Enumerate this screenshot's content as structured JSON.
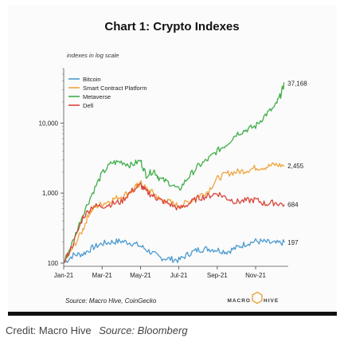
{
  "chart_data": {
    "type": "line",
    "title": "Chart 1: Crypto Indexes",
    "y_note": "indexes in log scale",
    "y_scale": "log",
    "ylim": [
      90,
      60000
    ],
    "xlim": [
      0,
      11.7
    ],
    "y_ticks": [
      {
        "value": 100,
        "label": "100"
      },
      {
        "value": 1000,
        "label": "1,000"
      },
      {
        "value": 10000,
        "label": "10,000"
      }
    ],
    "x_ticks": [
      {
        "value": 0,
        "label": "Jan-21"
      },
      {
        "value": 2,
        "label": "Mar-21"
      },
      {
        "value": 4,
        "label": "May-21"
      },
      {
        "value": 6,
        "label": "Jul-21"
      },
      {
        "value": 8,
        "label": "Sep-21"
      },
      {
        "value": 10,
        "label": "Nov-21"
      }
    ],
    "grid": false,
    "legend_position": "top-left",
    "series": [
      {
        "name": "Bitcoin",
        "color": "#4c9bd0",
        "end_label": "197",
        "points": [
          [
            0,
            100
          ],
          [
            0.5,
            130
          ],
          [
            1,
            135
          ],
          [
            1.5,
            165
          ],
          [
            2,
            190
          ],
          [
            2.5,
            200
          ],
          [
            3,
            205
          ],
          [
            3.5,
            195
          ],
          [
            4,
            175
          ],
          [
            4.5,
            145
          ],
          [
            5,
            120
          ],
          [
            5.5,
            115
          ],
          [
            6,
            110
          ],
          [
            6.5,
            135
          ],
          [
            7,
            155
          ],
          [
            7.5,
            160
          ],
          [
            8,
            155
          ],
          [
            8.5,
            145
          ],
          [
            9,
            165
          ],
          [
            9.5,
            190
          ],
          [
            10,
            205
          ],
          [
            10.5,
            200
          ],
          [
            11,
            190
          ],
          [
            11.5,
            197
          ]
        ]
      },
      {
        "name": "Smart Contract Platform",
        "color": "#f0a640",
        "end_label": "2,455",
        "points": [
          [
            0,
            100
          ],
          [
            0.5,
            170
          ],
          [
            1,
            300
          ],
          [
            1.3,
            500
          ],
          [
            1.6,
            630
          ],
          [
            2,
            700
          ],
          [
            2.5,
            800
          ],
          [
            3,
            900
          ],
          [
            3.5,
            1050
          ],
          [
            3.8,
            1250
          ],
          [
            4,
            1400
          ],
          [
            4.3,
            1150
          ],
          [
            4.7,
            1000
          ],
          [
            5,
            800
          ],
          [
            5.5,
            750
          ],
          [
            6,
            650
          ],
          [
            6.5,
            750
          ],
          [
            7,
            900
          ],
          [
            7.5,
            1050
          ],
          [
            8,
            1600
          ],
          [
            8.5,
            1900
          ],
          [
            9,
            2000
          ],
          [
            9.5,
            2100
          ],
          [
            10,
            2300
          ],
          [
            10.5,
            2350
          ],
          [
            11,
            2550
          ],
          [
            11.5,
            2455
          ]
        ]
      },
      {
        "name": "Metaverse",
        "color": "#3fae49",
        "end_label": "37,168",
        "points": [
          [
            0,
            100
          ],
          [
            0.5,
            210
          ],
          [
            1,
            500
          ],
          [
            1.5,
            1000
          ],
          [
            2,
            1900
          ],
          [
            2.5,
            2700
          ],
          [
            3,
            2800
          ],
          [
            3.5,
            2500
          ],
          [
            4,
            2900
          ],
          [
            4.3,
            1800
          ],
          [
            4.7,
            2100
          ],
          [
            5,
            1600
          ],
          [
            5.5,
            1400
          ],
          [
            6,
            1100
          ],
          [
            6.5,
            1700
          ],
          [
            7,
            2400
          ],
          [
            7.5,
            3000
          ],
          [
            8,
            4000
          ],
          [
            8.5,
            5000
          ],
          [
            9,
            7000
          ],
          [
            9.5,
            8000
          ],
          [
            10,
            9000
          ],
          [
            10.5,
            13000
          ],
          [
            11,
            17000
          ],
          [
            11.3,
            25000
          ],
          [
            11.5,
            37168
          ]
        ]
      },
      {
        "name": "Defi",
        "color": "#d9463a",
        "end_label": "684",
        "points": [
          [
            0,
            100
          ],
          [
            0.5,
            190
          ],
          [
            1,
            450
          ],
          [
            1.5,
            650
          ],
          [
            2,
            650
          ],
          [
            2.5,
            700
          ],
          [
            3,
            750
          ],
          [
            3.5,
            1050
          ],
          [
            4,
            1300
          ],
          [
            4.3,
            1050
          ],
          [
            4.7,
            900
          ],
          [
            5,
            800
          ],
          [
            5.5,
            700
          ],
          [
            6,
            600
          ],
          [
            6.5,
            700
          ],
          [
            7,
            850
          ],
          [
            7.5,
            900
          ],
          [
            8,
            1000
          ],
          [
            8.5,
            850
          ],
          [
            9,
            750
          ],
          [
            9.5,
            780
          ],
          [
            10,
            800
          ],
          [
            10.5,
            700
          ],
          [
            11,
            730
          ],
          [
            11.5,
            684
          ]
        ]
      }
    ]
  },
  "source": "Source: Macro Hive, CoinGecko",
  "logo": {
    "left": "MACRO",
    "right": "HIVE"
  },
  "caption": {
    "credit": "Credit: Macro Hive",
    "source": "Source: Bloomberg"
  }
}
